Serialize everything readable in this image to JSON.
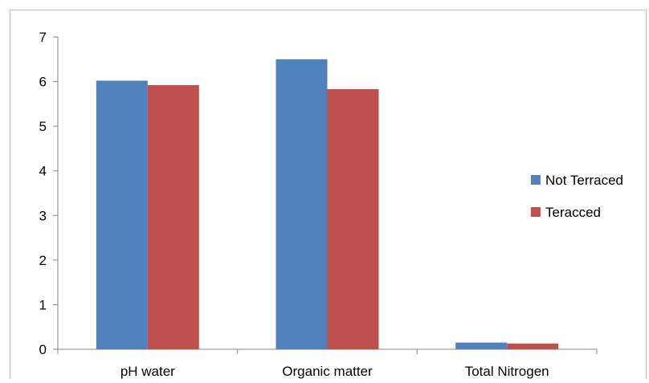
{
  "chart_data": {
    "type": "bar",
    "title": "",
    "xlabel": "",
    "ylabel": "",
    "categories": [
      "pH water",
      "Organic matter",
      "Total Nitrogen"
    ],
    "series": [
      {
        "name": "Not Terraced",
        "color": "#4f81bd",
        "values": [
          6.02,
          6.5,
          0.15
        ]
      },
      {
        "name": "Teracced",
        "color": "#c0504d",
        "values": [
          5.92,
          5.83,
          0.13
        ]
      }
    ],
    "ylim": [
      0,
      7
    ],
    "yticks": [
      0,
      1,
      2,
      3,
      4,
      5,
      6,
      7
    ],
    "grid": false,
    "legend_position": "right"
  }
}
